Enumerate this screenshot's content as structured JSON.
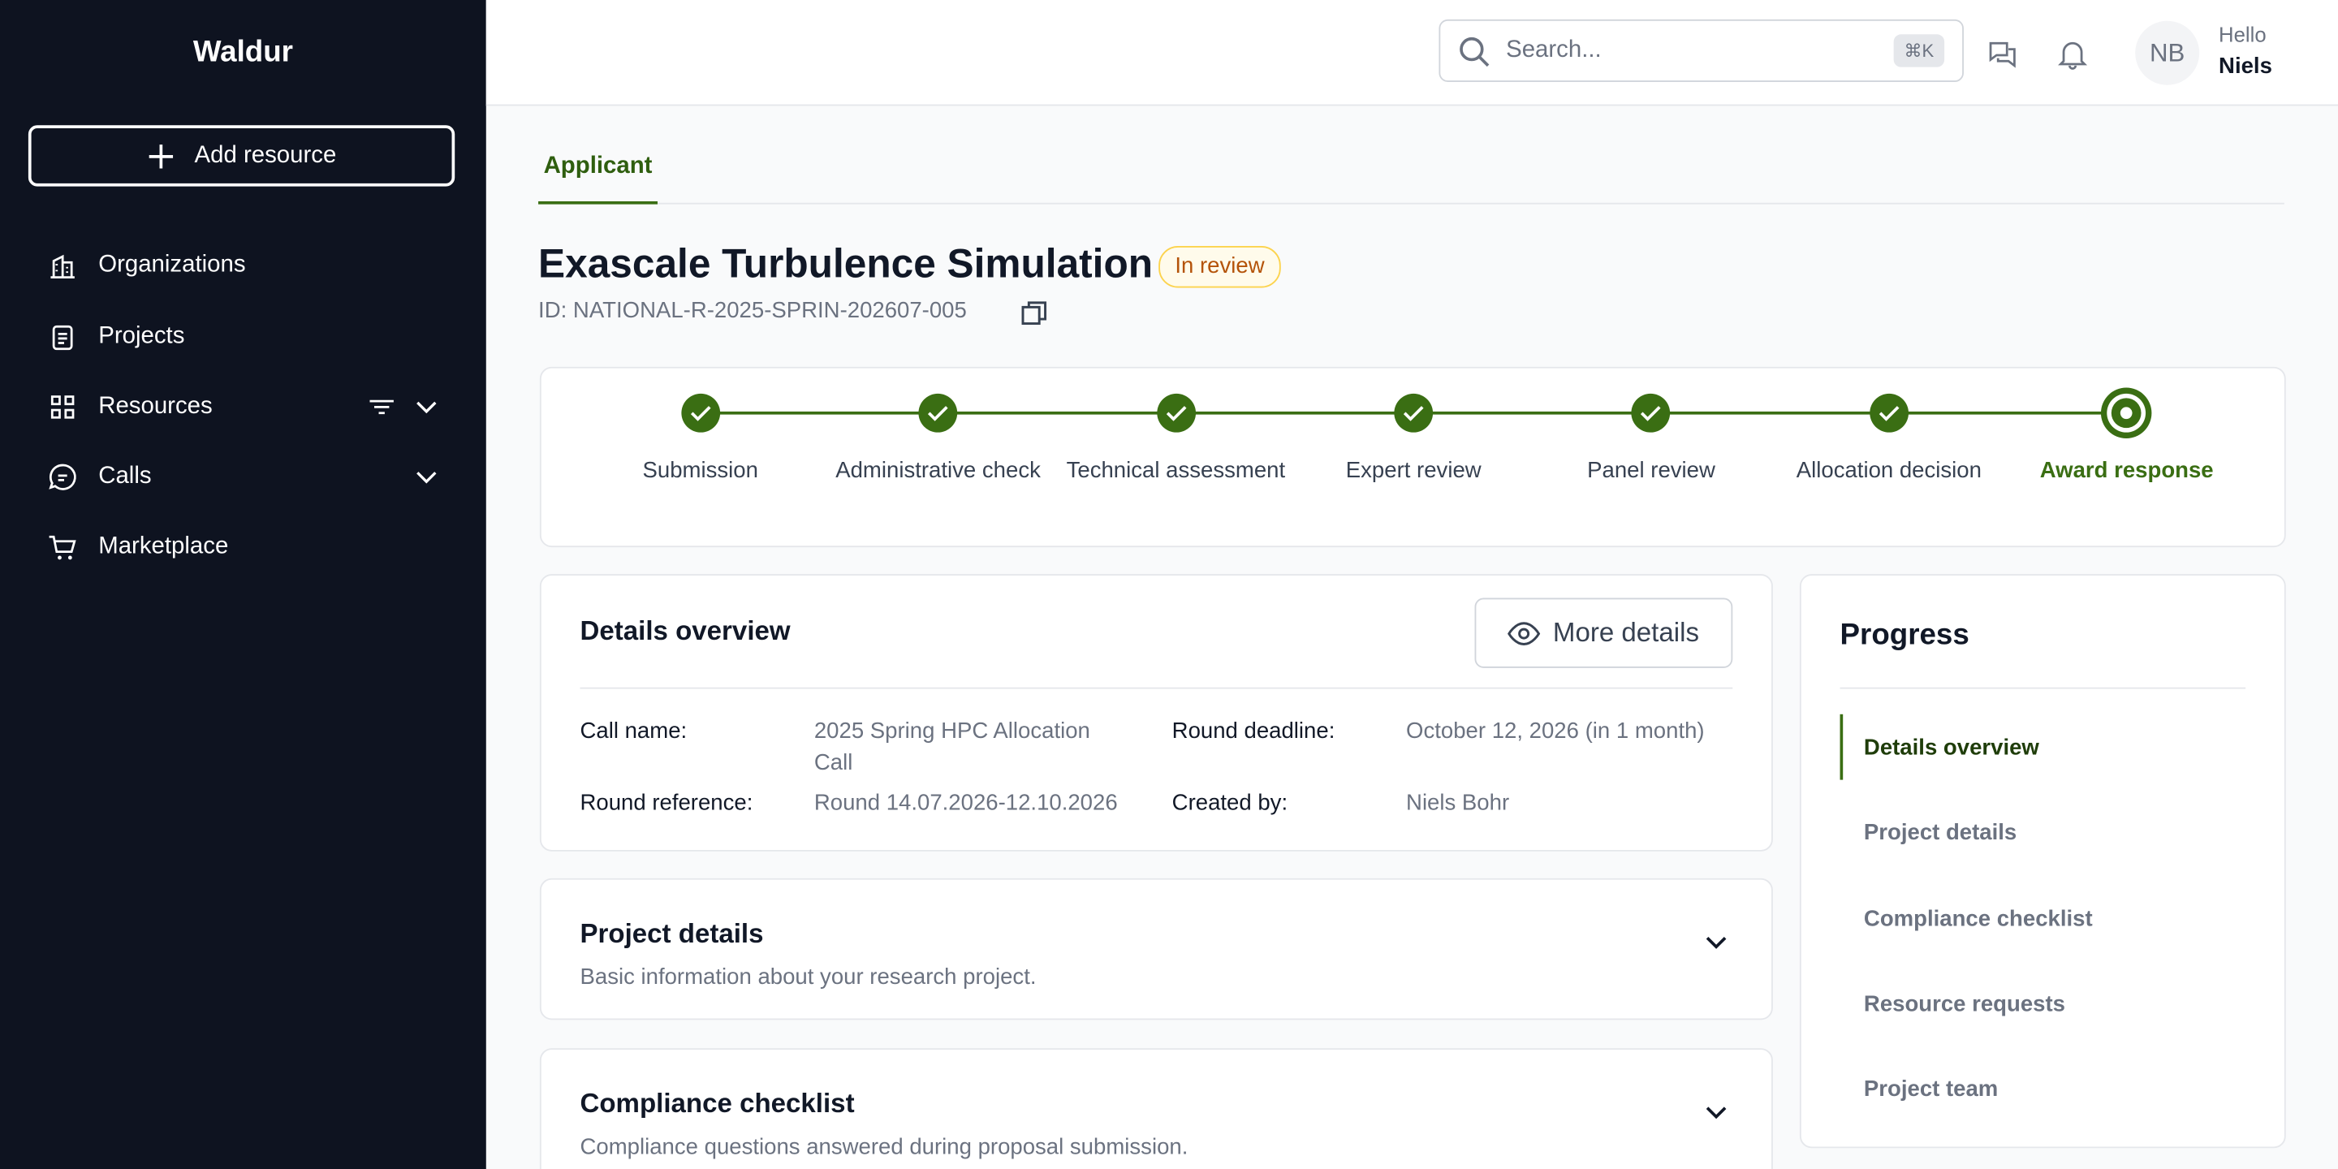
{
  "sidebar": {
    "brand": "Waldur",
    "add_button": "Add resource",
    "nav": [
      "Organizations",
      "Projects",
      "Resources",
      "Calls",
      "Marketplace"
    ]
  },
  "header": {
    "search_placeholder": "Search...",
    "shortcut": "⌘K",
    "avatar": "NB",
    "greeting": "Hello",
    "user": "Niels"
  },
  "tabs": [
    "Applicant"
  ],
  "proposal": {
    "title": "Exascale Turbulence Simulation",
    "status": "In review",
    "id": "ID: NATIONAL-R-2025-SPRIN-202607-005"
  },
  "steps": [
    "Submission",
    "Administrative check",
    "Technical assessment",
    "Expert review",
    "Panel review",
    "Allocation decision",
    "Award response"
  ],
  "details": {
    "title": "Details overview",
    "button": "More details",
    "fields": [
      {
        "label": "Call name:",
        "value": "2025 Spring HPC Allocation Call"
      },
      {
        "label": "Round deadline:",
        "value": "October 12, 2026 (in 1 month)"
      },
      {
        "label": "Round reference:",
        "value": "Round 14.07.2026-12.10.2026"
      },
      {
        "label": "Created by:",
        "value": "Niels Bohr"
      }
    ]
  },
  "sections": [
    {
      "title": "Project details",
      "description": "Basic information about your research project."
    },
    {
      "title": "Compliance checklist",
      "description": "Compliance questions answered during proposal submission."
    }
  ],
  "progress": {
    "title": "Progress",
    "items": [
      "Details overview",
      "Project details",
      "Compliance checklist",
      "Resource requests",
      "Project team"
    ]
  }
}
